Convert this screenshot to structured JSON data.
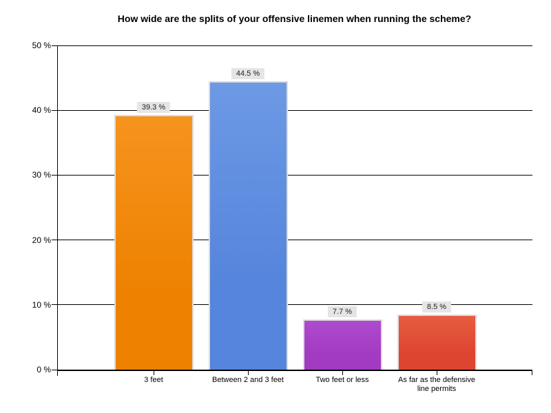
{
  "chart_data": {
    "type": "bar",
    "title": "How wide are the splits of your offensive linemen when running the scheme?",
    "categories": [
      "3 feet",
      "Between 2 and 3 feet",
      "Two feet or less",
      "As far as the defensive\nline permits"
    ],
    "values": [
      39.3,
      44.5,
      7.7,
      8.5
    ],
    "value_labels": [
      "39.3 %",
      "44.5 %",
      "7.7 %",
      "8.5 %"
    ],
    "xlabel": "",
    "ylabel": "",
    "ylim": [
      0,
      50
    ],
    "yticks": [
      0,
      10,
      20,
      30,
      40,
      50
    ],
    "ytick_labels": [
      "0 %",
      "10 %",
      "20 %",
      "30 %",
      "40 %",
      "50 %"
    ],
    "grid": true,
    "legend_position": "none",
    "bar_colors": [
      "#ee8100",
      "#5585dc",
      "#a23bc2",
      "#dd4530"
    ],
    "bar_colors_light": [
      "#f6941e",
      "#6d99e5",
      "#ae4bce",
      "#e75c41"
    ]
  },
  "colors": {
    "background": "#ffffff",
    "grid": "#000000",
    "bar_border": "#dcdcdc",
    "value_label_bg": "#e5e5e5",
    "text": "#000000"
  }
}
